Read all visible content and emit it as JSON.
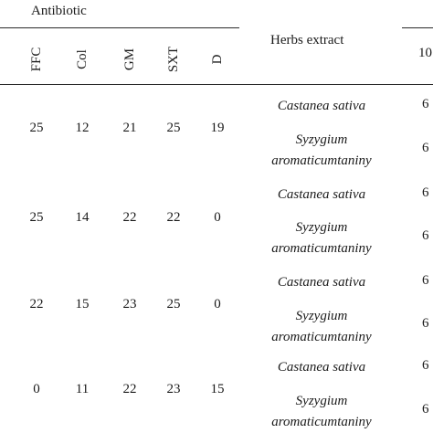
{
  "header": {
    "antibiotic_label": "Antibiotic",
    "herbs_label": "Herbs extract",
    "right_col_label": "10",
    "antibiotic_cols": [
      "FFC",
      "Col",
      "GM",
      "SXT",
      "D"
    ]
  },
  "rows": [
    {
      "values": [
        "25",
        "12",
        "21",
        "25",
        "19"
      ],
      "herb1": "Castanea sativa",
      "herb2_line1": "Syzygium",
      "herb2_line2": "aromaticumtaniny",
      "r1": "6",
      "r2": "6"
    },
    {
      "values": [
        "25",
        "14",
        "22",
        "22",
        "0"
      ],
      "herb1": "Castanea sativa",
      "herb2_line1": "Syzygium",
      "herb2_line2": "aromaticumtaniny",
      "r1": "6",
      "r2": "6"
    },
    {
      "values": [
        "22",
        "15",
        "23",
        "25",
        "0"
      ],
      "herb1": "Castanea sativa",
      "herb2_line1": "Syzygium",
      "herb2_line2": "aromaticumtaniny",
      "r1": "6",
      "r2": "6"
    },
    {
      "values": [
        "0",
        "11",
        "22",
        "23",
        "15"
      ],
      "herb1": "Castanea sativa",
      "herb2_line1": "Syzygium",
      "herb2_line2": "aromaticumtaniny",
      "r1": "6",
      "r2": "6"
    }
  ]
}
